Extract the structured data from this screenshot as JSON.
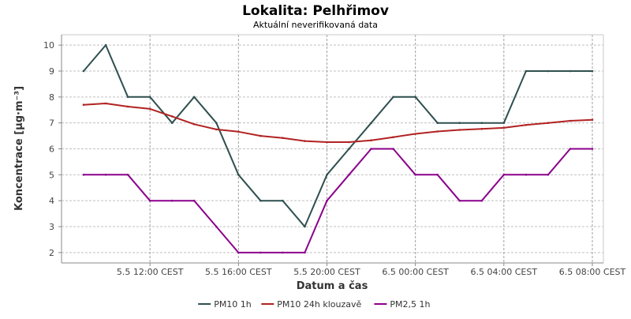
{
  "chart_data": {
    "type": "line",
    "title": "Lokalita: Pelhřimov",
    "subtitle": "Aktuální neverifikovaná data",
    "xlabel": "Datum a čas",
    "ylabel": "Koncentrace [µg·m⁻³]",
    "ylim": [
      1.6,
      10.4
    ],
    "yticks": [
      2,
      3,
      4,
      5,
      6,
      7,
      8,
      9,
      10
    ],
    "x": [
      "2025-05-05 09:00",
      "2025-05-05 10:00",
      "2025-05-05 11:00",
      "2025-05-05 12:00",
      "2025-05-05 13:00",
      "2025-05-05 14:00",
      "2025-05-05 15:00",
      "2025-05-05 16:00",
      "2025-05-05 17:00",
      "2025-05-05 18:00",
      "2025-05-05 19:00",
      "2025-05-05 20:00",
      "2025-05-05 21:00",
      "2025-05-05 22:00",
      "2025-05-05 23:00",
      "2025-05-06 00:00",
      "2025-05-06 01:00",
      "2025-05-06 02:00",
      "2025-05-06 03:00",
      "2025-05-06 04:00",
      "2025-05-06 05:00",
      "2025-05-06 06:00",
      "2025-05-06 07:00",
      "2025-05-06 08:00"
    ],
    "xlim": [
      "2025-05-05 08:00",
      "2025-05-06 08:30"
    ],
    "xtick_positions": [
      "2025-05-05 12:00",
      "2025-05-05 16:00",
      "2025-05-05 20:00",
      "2025-05-06 00:00",
      "2025-05-06 04:00",
      "2025-05-06 08:00"
    ],
    "xtick_labels": [
      "5.5 12:00 CEST",
      "5.5 16:00 CEST",
      "5.5 20:00 CEST",
      "6.5 00:00 CEST",
      "6.5 04:00 CEST",
      "6.5 08:00 CEST"
    ],
    "grid": true,
    "legend": "bottom",
    "series": [
      {
        "name": "PM10 1h",
        "color": "#2f4f4f",
        "values": [
          9,
          10,
          8,
          8,
          7,
          8,
          7,
          5,
          4,
          4,
          3,
          5,
          6,
          7,
          8,
          8,
          7,
          7,
          7,
          7,
          9,
          9,
          9,
          9
        ]
      },
      {
        "name": "PM10 24h klouzavě",
        "color": "#b22222",
        "values": [
          7.7,
          7.75,
          7.63,
          7.54,
          7.25,
          6.95,
          6.75,
          6.66,
          6.5,
          6.42,
          6.3,
          6.26,
          6.26,
          6.33,
          6.45,
          6.58,
          6.67,
          6.73,
          6.77,
          6.81,
          6.92,
          7.0,
          7.08,
          7.12
        ]
      },
      {
        "name": "PM2,5 1h",
        "color": "#8b008b",
        "values": [
          5,
          5,
          5,
          4,
          4,
          4,
          3,
          2,
          2,
          2,
          2,
          4,
          5,
          6,
          6,
          5,
          5,
          4,
          4,
          5,
          5,
          5,
          6,
          6
        ]
      }
    ]
  }
}
